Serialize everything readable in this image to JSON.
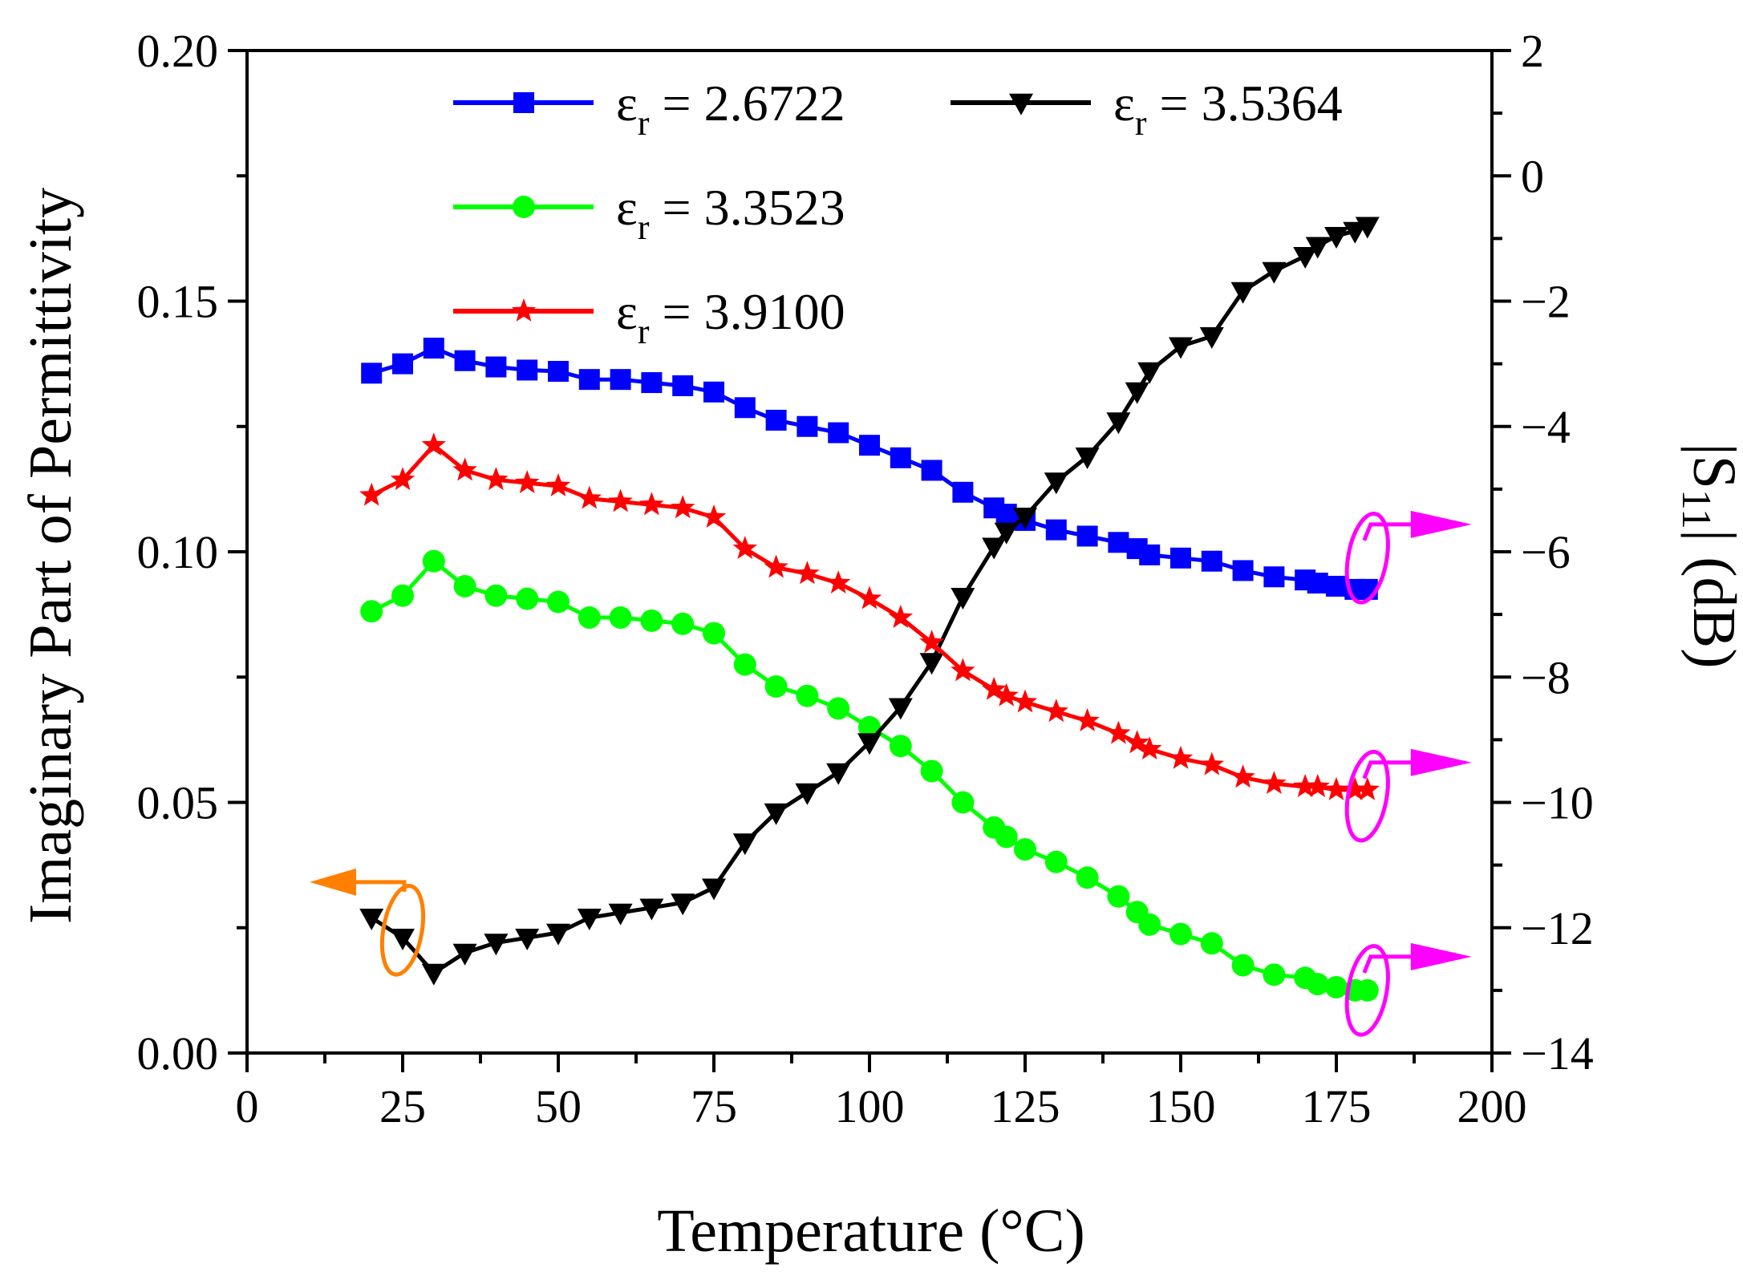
{
  "chart_data": {
    "type": "line",
    "title": "",
    "xlabel": "Temperature (°C)",
    "ylabel_left": "Imaginary Part of Permittivity",
    "ylabel_right": "|S11| (dB)",
    "ylabel_right_parts": {
      "prefix": "|S",
      "subscript": "11",
      "suffix": "| (dB)"
    },
    "xlim": [
      0,
      200
    ],
    "ylim_left": [
      0.0,
      0.2
    ],
    "ylim_right": [
      -14,
      2
    ],
    "x_ticks": [
      "0",
      "25",
      "50",
      "75",
      "100",
      "125",
      "150",
      "175",
      "200"
    ],
    "y_left_ticks": [
      "0.00",
      "0.05",
      "0.10",
      "0.15",
      "0.20"
    ],
    "y_right_ticks": [
      "−14",
      "−12",
      "−10",
      "−8",
      "−6",
      "−4",
      "−2",
      "0",
      "2"
    ],
    "x_tick_values": [
      0,
      25,
      50,
      75,
      100,
      125,
      150,
      175,
      200
    ],
    "y_left_tick_values": [
      0,
      0.05,
      0.1,
      0.15,
      0.2
    ],
    "y_right_tick_values": [
      -14,
      -12,
      -10,
      -8,
      -6,
      -4,
      -2,
      0,
      2
    ],
    "grid": false,
    "legend_position": "top",
    "series": [
      {
        "name": "εr = 2.6722",
        "legend_symbol": "ε",
        "legend_sub": "r",
        "legend_value": " = 2.6722",
        "color": "#0000ff",
        "marker": "square",
        "axis": "right",
        "x": [
          20,
          25,
          30,
          35,
          40,
          45,
          50,
          55,
          60,
          65,
          70,
          75,
          80,
          85,
          90,
          95,
          100,
          105,
          110,
          115,
          120,
          122,
          125,
          130,
          135,
          140,
          143,
          145,
          150,
          155,
          160,
          165,
          170,
          172,
          175,
          178,
          180
        ],
        "values": [
          -3.15,
          -3.0,
          -2.75,
          -2.95,
          -3.05,
          -3.1,
          -3.12,
          -3.25,
          -3.25,
          -3.3,
          -3.35,
          -3.45,
          -3.7,
          -3.9,
          -4.0,
          -4.1,
          -4.3,
          -4.5,
          -4.7,
          -5.05,
          -5.3,
          -5.4,
          -5.5,
          -5.65,
          -5.75,
          -5.85,
          -5.95,
          -6.05,
          -6.1,
          -6.15,
          -6.3,
          -6.4,
          -6.45,
          -6.5,
          -6.55,
          -6.6,
          -6.6
        ]
      },
      {
        "name": "εr = 3.3523",
        "legend_symbol": "ε",
        "legend_sub": "r",
        "legend_value": " = 3.3523",
        "color": "#00ff00",
        "marker": "circle",
        "axis": "right",
        "x": [
          20,
          25,
          30,
          35,
          40,
          45,
          50,
          55,
          60,
          65,
          70,
          75,
          80,
          85,
          90,
          95,
          100,
          105,
          110,
          115,
          120,
          122,
          125,
          130,
          135,
          140,
          143,
          145,
          150,
          155,
          160,
          165,
          170,
          172,
          175,
          178,
          180
        ],
        "values": [
          -6.95,
          -6.7,
          -6.15,
          -6.55,
          -6.7,
          -6.75,
          -6.8,
          -7.05,
          -7.05,
          -7.1,
          -7.15,
          -7.3,
          -7.8,
          -8.15,
          -8.3,
          -8.5,
          -8.8,
          -9.1,
          -9.5,
          -10.0,
          -10.4,
          -10.55,
          -10.75,
          -10.95,
          -11.2,
          -11.5,
          -11.75,
          -11.95,
          -12.1,
          -12.25,
          -12.6,
          -12.75,
          -12.8,
          -12.9,
          -12.95,
          -13.0,
          -13.0
        ]
      },
      {
        "name": "εr = 3.5364",
        "legend_symbol": "ε",
        "legend_sub": "r",
        "legend_value": " = 3.5364",
        "color": "#000000",
        "marker": "triangle-down",
        "axis": "left",
        "x": [
          20,
          25,
          30,
          35,
          40,
          45,
          50,
          55,
          60,
          65,
          70,
          75,
          80,
          85,
          90,
          95,
          100,
          105,
          110,
          115,
          120,
          122,
          125,
          130,
          135,
          140,
          143,
          145,
          150,
          155,
          160,
          165,
          170,
          172,
          175,
          178,
          180
        ],
        "values": [
          0.027,
          0.023,
          0.016,
          0.02,
          0.022,
          0.023,
          0.024,
          0.027,
          0.028,
          0.029,
          0.03,
          0.033,
          0.042,
          0.048,
          0.052,
          0.056,
          0.062,
          0.069,
          0.078,
          0.091,
          0.101,
          0.104,
          0.107,
          0.114,
          0.119,
          0.126,
          0.132,
          0.136,
          0.141,
          0.143,
          0.152,
          0.156,
          0.159,
          0.161,
          0.163,
          0.164,
          0.165
        ]
      },
      {
        "name": "εr = 3.9100",
        "legend_symbol": "ε",
        "legend_sub": "r",
        "legend_value": " = 3.9100",
        "color": "#ff0000",
        "marker": "star",
        "axis": "right",
        "x": [
          20,
          25,
          30,
          35,
          40,
          45,
          50,
          55,
          60,
          65,
          70,
          75,
          80,
          85,
          90,
          95,
          100,
          105,
          110,
          115,
          120,
          122,
          125,
          130,
          135,
          140,
          143,
          145,
          150,
          155,
          160,
          165,
          170,
          172,
          175,
          178,
          180
        ],
        "values": [
          -5.1,
          -4.85,
          -4.3,
          -4.7,
          -4.85,
          -4.9,
          -4.95,
          -5.15,
          -5.2,
          -5.25,
          -5.3,
          -5.45,
          -5.95,
          -6.25,
          -6.35,
          -6.5,
          -6.75,
          -7.05,
          -7.45,
          -7.9,
          -8.2,
          -8.3,
          -8.4,
          -8.55,
          -8.7,
          -8.9,
          -9.05,
          -9.15,
          -9.3,
          -9.4,
          -9.6,
          -9.7,
          -9.75,
          -9.75,
          -9.8,
          -9.8,
          -9.8
        ]
      }
    ],
    "annotations": [
      {
        "type": "circle-arrow",
        "target": "εr = 3.5364",
        "direction": "left",
        "color": "#ff7f00",
        "axis": "left",
        "at_x": 25,
        "at_y": 0.0245
      },
      {
        "type": "circle-arrow",
        "target": "εr = 2.6722",
        "direction": "right",
        "color": "#ff00ff",
        "axis": "right",
        "at_x": 180,
        "at_y": -6.1
      },
      {
        "type": "circle-arrow",
        "target": "εr = 3.9100",
        "direction": "right",
        "color": "#ff00ff",
        "axis": "right",
        "at_x": 180,
        "at_y": -9.9
      },
      {
        "type": "circle-arrow",
        "target": "εr = 3.3523",
        "direction": "right",
        "color": "#ff00ff",
        "axis": "right",
        "at_x": 180,
        "at_y": -13.0
      }
    ]
  }
}
